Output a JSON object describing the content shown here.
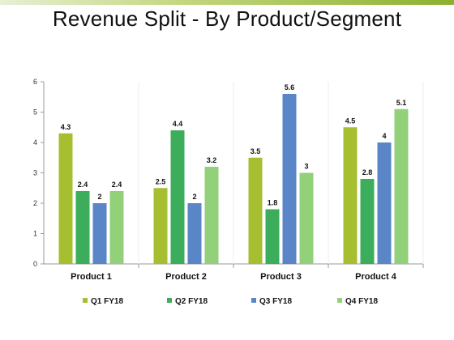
{
  "slide": {
    "title": "Revenue Split - By Product/Segment"
  },
  "chart_data": {
    "type": "bar",
    "title": "",
    "xlabel": "",
    "ylabel": "",
    "categories": [
      "Product 1",
      "Product 2",
      "Product 3",
      "Product 4"
    ],
    "series": [
      {
        "name": "Q1 FY18",
        "color": "#a5bf30",
        "values": [
          4.3,
          2.5,
          3.5,
          4.5
        ]
      },
      {
        "name": "Q2 FY18",
        "color": "#3cad5b",
        "values": [
          2.4,
          4.4,
          1.8,
          2.8
        ]
      },
      {
        "name": "Q3 FY18",
        "color": "#5a86c8",
        "values": [
          2,
          2,
          5.6,
          4
        ]
      },
      {
        "name": "Q4 FY18",
        "color": "#92d07a",
        "values": [
          2.4,
          3.2,
          3,
          5.1
        ]
      }
    ],
    "ylim": [
      0,
      6
    ],
    "yticks": [
      0,
      1,
      2,
      3,
      4,
      5,
      6
    ],
    "grid": false,
    "legend_position": "bottom",
    "data_labels": true
  }
}
